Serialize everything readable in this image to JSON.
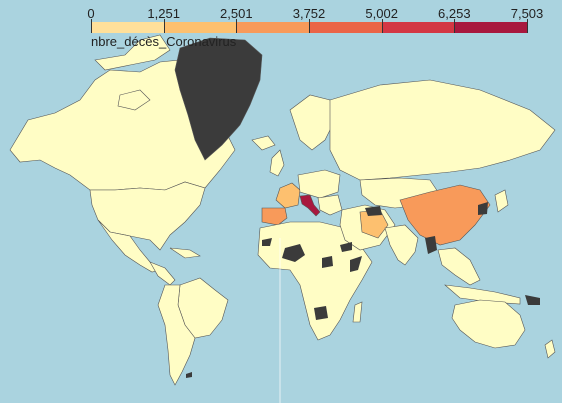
{
  "legend": {
    "caption": "nbre_décès_Coronavirus",
    "ticks": [
      "0",
      "1,251",
      "2,501",
      "3,752",
      "5,002",
      "6,253",
      "7,503"
    ],
    "colors": [
      "#fffdc5",
      "#ffe09a",
      "#fdc06f",
      "#f89a5a",
      "#ea6447",
      "#d33744",
      "#a8183e"
    ]
  },
  "map": {
    "ocean_color": "#aad3df",
    "border_color": "#444444",
    "no_data_color": "#3b3b3b",
    "countries": {
      "greenland": "no-data",
      "italy": "7,503",
      "spain": "≈3,700",
      "china": "≈3,270",
      "iran": "≈1,900",
      "france": "≈1,100"
    }
  }
}
